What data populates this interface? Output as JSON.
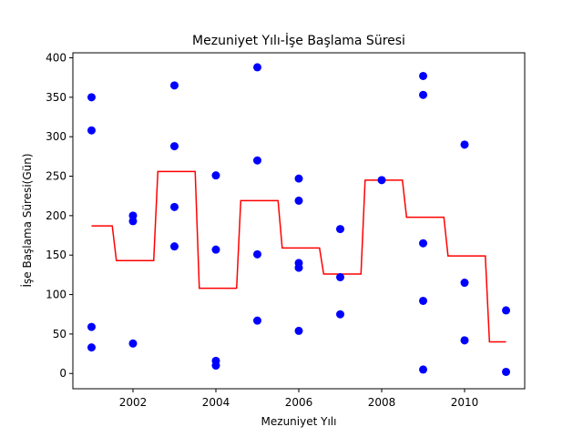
{
  "chart_data": {
    "type": "scatter",
    "title": "Mezuniyet Yılı-İşe Başlama Süresi",
    "xlabel": "Mezuniyet Yılı",
    "ylabel": "İşe Başlama Süresi(Gün)",
    "xlim": [
      2000.55,
      2011.45
    ],
    "ylim": [
      -19.35,
      406.35
    ],
    "xticks": [
      2002,
      2004,
      2006,
      2008,
      2010
    ],
    "yticks": [
      0,
      50,
      100,
      150,
      200,
      250,
      300,
      350,
      400
    ],
    "grid": false,
    "colors": {
      "points": "#0000ff",
      "line": "#ff0000"
    },
    "series": [
      {
        "type": "scatter",
        "points": [
          [
            2001,
            350
          ],
          [
            2001,
            308
          ],
          [
            2001,
            59
          ],
          [
            2001,
            33
          ],
          [
            2002,
            200
          ],
          [
            2002,
            193
          ],
          [
            2002,
            38
          ],
          [
            2003,
            365
          ],
          [
            2003,
            288
          ],
          [
            2003,
            211
          ],
          [
            2003,
            161
          ],
          [
            2004,
            251
          ],
          [
            2004,
            157
          ],
          [
            2004,
            16
          ],
          [
            2004,
            10
          ],
          [
            2005,
            388
          ],
          [
            2005,
            270
          ],
          [
            2005,
            151
          ],
          [
            2005,
            67
          ],
          [
            2006,
            247
          ],
          [
            2006,
            219
          ],
          [
            2006,
            140
          ],
          [
            2006,
            134
          ],
          [
            2006,
            54
          ],
          [
            2007,
            183
          ],
          [
            2007,
            122
          ],
          [
            2007,
            75
          ],
          [
            2008,
            245
          ],
          [
            2009,
            377
          ],
          [
            2009,
            353
          ],
          [
            2009,
            165
          ],
          [
            2009,
            92
          ],
          [
            2009,
            5
          ],
          [
            2010,
            290
          ],
          [
            2010,
            115
          ],
          [
            2010,
            42
          ],
          [
            2011,
            80
          ],
          [
            2011,
            2
          ]
        ]
      },
      {
        "type": "line",
        "points": [
          [
            2001.0,
            187
          ],
          [
            2001.5,
            187
          ],
          [
            2001.6,
            143
          ],
          [
            2002.5,
            143
          ],
          [
            2002.6,
            256
          ],
          [
            2003.5,
            256
          ],
          [
            2003.6,
            108
          ],
          [
            2004.5,
            108
          ],
          [
            2004.6,
            219
          ],
          [
            2005.5,
            219
          ],
          [
            2005.6,
            159
          ],
          [
            2006.5,
            159
          ],
          [
            2006.6,
            126
          ],
          [
            2007.5,
            126
          ],
          [
            2007.6,
            245
          ],
          [
            2008.5,
            245
          ],
          [
            2008.6,
            198
          ],
          [
            2009.5,
            198
          ],
          [
            2009.6,
            149
          ],
          [
            2010.5,
            149
          ],
          [
            2010.6,
            40
          ],
          [
            2011.0,
            40
          ]
        ]
      }
    ]
  }
}
